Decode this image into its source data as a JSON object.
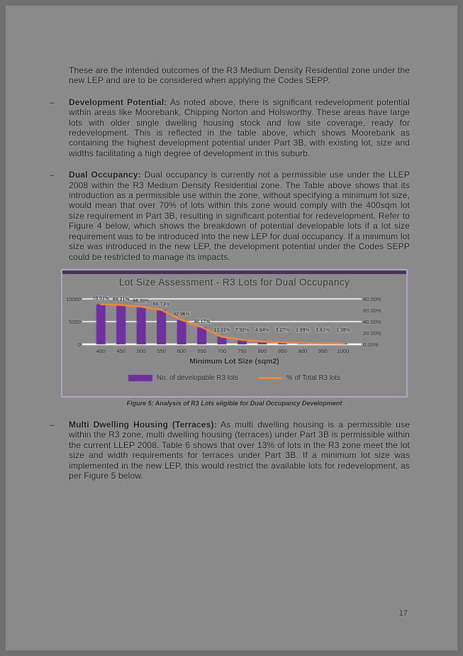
{
  "page": {
    "number": "17",
    "intro": "These are the intended outcomes of the R3 Medium Density Residential zone under the new LEP and are to be considered when applying the Codes SEPP.",
    "bullets": [
      {
        "marker": "–",
        "title": "Development Potential:",
        "body": " As noted above, there is significant redevelopment potential within areas like Moorebank, Chipping Norton and Holsworthy. These areas have large lots with older single dwelling housing stock and low site coverage, ready for redevelopment. This is reflected in the table above, which shows Moorebank as containing the highest development potential under Part 3B, with existing lot, size and widths facilitating a high degree of development in this suburb."
      },
      {
        "marker": "–",
        "title": "Dual Occupancy:",
        "body": " Dual occupancy is currently not a permissible use under the LLEP 2008 within the R3 Medium Density Residential zone. The Table above shows that its introduction as a permissible use within the zone, without specifying a minimum lot size, would mean that over 70% of lots within this zone would comply with the 400sqm lot size requirement in Part 3B, resulting in significant potential for redevelopment. Refer to Figure 4 below, which shows the breakdown of potential developable lots if a lot size requirement was to be introduced into the new LEP for dual occupancy. If a minimum lot size was introduced in the new LEP, the development potential under the Codes SEPP could be restricted to manage its impacts."
      },
      {
        "marker": "–",
        "title": "Multi Dwelling Housing (Terraces):",
        "body": " As multi dwelling housing is a permissible use within the R3 zone, multi dwelling housing (terraces) under Part 3B is permissible within the current LLEP 2008. Table 6 shows that over 13% of lots in the R3 zone meet the lot size and width requirements for terraces under Part 3B. If a minimum lot size was implemented in the new LEP, this would restrict the available lots for redevelopment, as per Figure 5 below."
      }
    ],
    "figure_caption": "Figure 5: Analysis of R3 Lots eligible for Dual Occupancy Development"
  },
  "chart_data": {
    "type": "combo-bar-line",
    "title": "Lot Size Assessment - R3 Lots for Dual Occupancy",
    "categories": [
      "400",
      "450",
      "500",
      "550",
      "600",
      "650",
      "700",
      "750",
      "800",
      "850",
      "900",
      "950",
      "1000"
    ],
    "xlabel": "Minimum Lot Size (sqm2)",
    "left_axis": {
      "ticks": [
        "10000",
        "5000",
        "0"
      ],
      "max": 10000,
      "min": 0
    },
    "right_axis": {
      "ticks": [
        "80.00%",
        "60.00%",
        "40.00%",
        "20.00%",
        "0.00%"
      ],
      "max": 80,
      "min": 0
    },
    "gridlines": true,
    "legend_position": "bottom",
    "series": [
      {
        "name": "No. of developable R3 lots",
        "type": "bar",
        "axis": "left",
        "color": "#7030a0",
        "values_est": [
          8810,
          8650,
          8290,
          7590,
          5370,
          3770,
          1660,
          990,
          600,
          410,
          250,
          200,
          170
        ]
      },
      {
        "name": "% of Total R3 lots",
        "type": "line",
        "axis": "right",
        "color": "#f0883c",
        "values_pct": [
          70.51,
          69.21,
          66.3,
          60.73,
          42.96,
          30.17,
          13.31,
          7.92,
          4.84,
          3.27,
          1.99,
          1.61,
          1.38
        ],
        "labels": [
          "70.51%",
          "69.21%",
          "66.30%",
          "60.73%",
          "42.96%",
          "30.17%",
          "13.31%",
          "7.92%",
          "4.84%",
          "3.27%",
          "1.99%",
          "1.61%",
          "1.38%"
        ]
      }
    ],
    "colors": {
      "figure_border": "#b3a3c9",
      "figure_topbar": "#443457",
      "gridline": "#fdfdfd",
      "page_bg": "#8a8a8a",
      "frame_bg": "#6f6f6f"
    }
  }
}
